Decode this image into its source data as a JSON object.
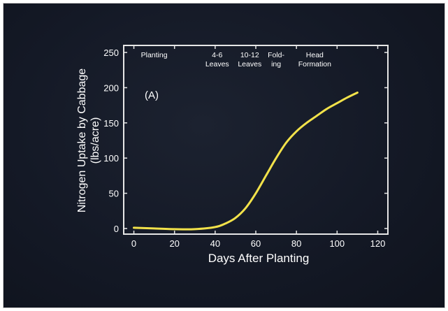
{
  "chart_data": {
    "type": "line",
    "panel_label": "(A)",
    "xlabel": "Days After Planting",
    "ylabel_line1": "Nitrogen Uptake by Cabbage",
    "ylabel_line2": "(lbs/acre)",
    "xlim": [
      -5,
      125
    ],
    "ylim": [
      -8,
      260
    ],
    "x_ticks": [
      0,
      20,
      40,
      60,
      80,
      100,
      120
    ],
    "y_ticks": [
      0,
      50,
      100,
      150,
      200,
      250
    ],
    "grid": false,
    "legend": "none",
    "series": [
      {
        "color": "#f2e24a",
        "x": [
          0,
          10,
          20,
          30,
          40,
          45,
          50,
          55,
          60,
          65,
          70,
          75,
          80,
          85,
          90,
          95,
          100,
          105,
          110
        ],
        "y": [
          1,
          0,
          -1,
          -1,
          2,
          7,
          15,
          29,
          50,
          75,
          100,
          122,
          138,
          150,
          160,
          170,
          178,
          186,
          193
        ]
      }
    ],
    "stage_annotations": [
      {
        "x": 10,
        "lines": [
          "Planting"
        ]
      },
      {
        "x": 41,
        "lines": [
          "4-6",
          "Leaves"
        ]
      },
      {
        "x": 57,
        "lines": [
          "10-12",
          "Leaves"
        ]
      },
      {
        "x": 70,
        "lines": [
          "Fold-",
          "ing"
        ]
      },
      {
        "x": 89,
        "lines": [
          "Head",
          "Formation"
        ]
      }
    ]
  }
}
